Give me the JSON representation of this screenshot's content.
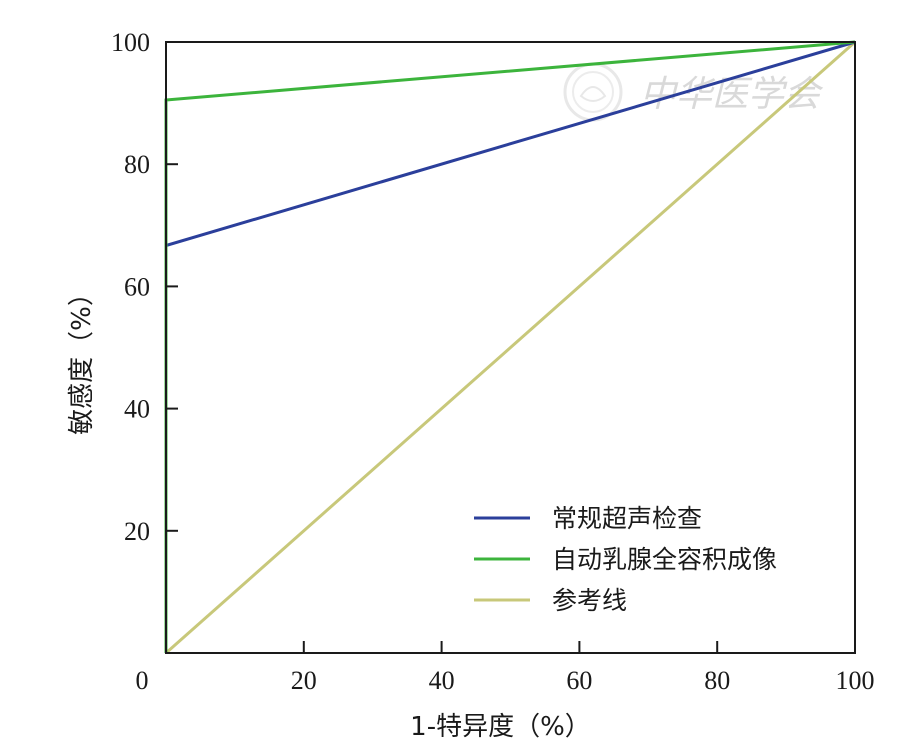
{
  "chart_data": {
    "type": "line",
    "title": "",
    "xlabel": "1-特异度（%）",
    "ylabel": "敏感度（%）",
    "xlim": [
      0,
      100
    ],
    "ylim": [
      0,
      100
    ],
    "x_ticks": [
      "0",
      "20",
      "40",
      "60",
      "80",
      "100"
    ],
    "y_ticks": [
      "20",
      "40",
      "60",
      "80",
      "100"
    ],
    "grid": false,
    "legend_position": "bottom-right",
    "series": [
      {
        "name": "常规超声检查",
        "color": "#2b3f9b",
        "points": [
          [
            0,
            0
          ],
          [
            0,
            66.7
          ],
          [
            100,
            100
          ]
        ]
      },
      {
        "name": "自动乳腺全容积成像",
        "color": "#3cb43c",
        "points": [
          [
            0,
            0
          ],
          [
            0,
            90.5
          ],
          [
            100,
            100
          ]
        ]
      },
      {
        "name": "参考线",
        "color": "#c8c87a",
        "points": [
          [
            0,
            0
          ],
          [
            100,
            100
          ]
        ]
      }
    ]
  },
  "watermark": {
    "text": "中华医学会",
    "icon": "society-seal-icon"
  }
}
